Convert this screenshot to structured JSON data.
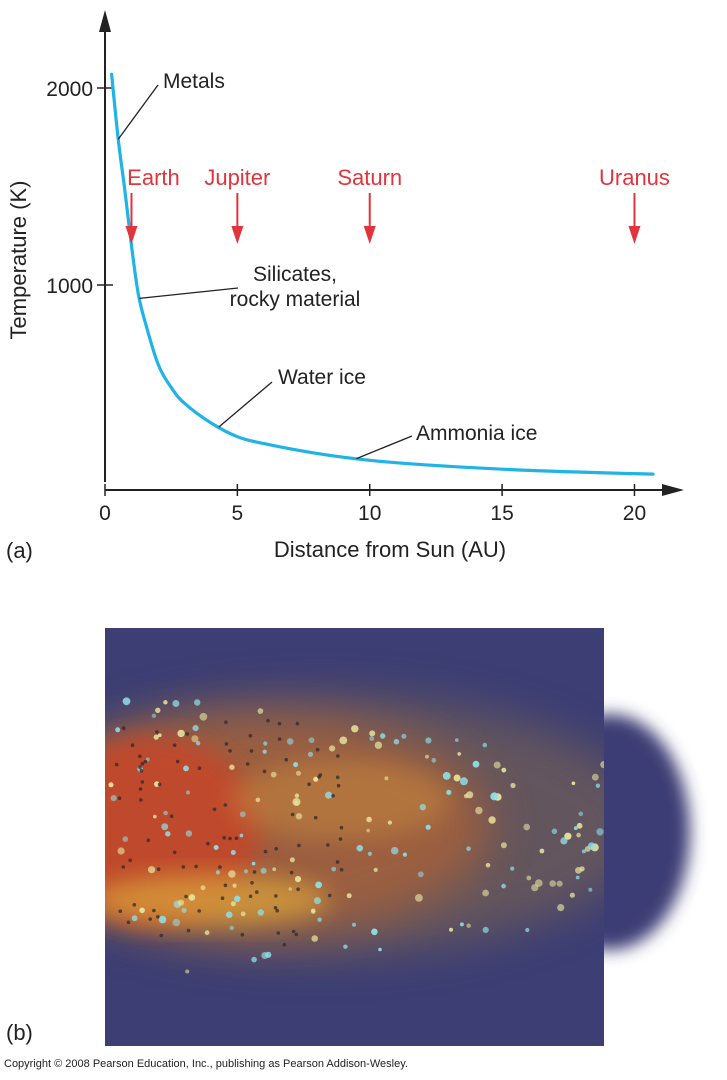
{
  "chart_data": {
    "type": "line",
    "xlabel": "Distance from Sun (AU)",
    "ylabel": "Temperature (K)",
    "xlim": [
      0,
      22
    ],
    "ylim": [
      0,
      2150
    ],
    "xticks": [
      0,
      5,
      10,
      15,
      20
    ],
    "yticks": [
      1000,
      2000
    ],
    "series": [
      {
        "color": "#1fb3e6",
        "x": [
          0.25,
          0.5,
          0.75,
          1.0,
          1.25,
          1.5,
          2.0,
          2.5,
          3.0,
          4.0,
          5.0,
          6.0,
          8.0,
          10.0,
          12.0,
          15.0,
          18.0,
          20.7
        ],
        "y": [
          2070,
          1740,
          1480,
          1200,
          960,
          820,
          600,
          480,
          400,
          300,
          230,
          195,
          145,
          110,
          88,
          65,
          50,
          40
        ]
      }
    ],
    "planets": [
      {
        "name": "Earth",
        "x": 1
      },
      {
        "name": "Jupiter",
        "x": 5
      },
      {
        "name": "Saturn",
        "x": 10
      },
      {
        "name": "Uranus",
        "x": 20
      }
    ],
    "annotations": [
      {
        "lines": [
          "Metals"
        ],
        "at_x": 0.5
      },
      {
        "lines": [
          "Silicates,",
          "rocky material"
        ],
        "at_x": 1.3
      },
      {
        "lines": [
          "Water ice"
        ],
        "at_x": 4.3
      },
      {
        "lines": [
          "Ammonia ice"
        ],
        "at_x": 9.5
      }
    ],
    "planet_color": "#e2343c",
    "curve_color": "#1fb3e6"
  },
  "panels": {
    "a_label": "(a)",
    "b_label": "(b)"
  },
  "nebula_image": {
    "background": "#3c3e74",
    "colors": [
      "#c44a2a",
      "#d99a3a",
      "#8fe0e8",
      "#e8e6a0"
    ]
  },
  "copyright": "Copyright © 2008 Pearson Education, Inc., publishing as Pearson Addison-Wesley."
}
